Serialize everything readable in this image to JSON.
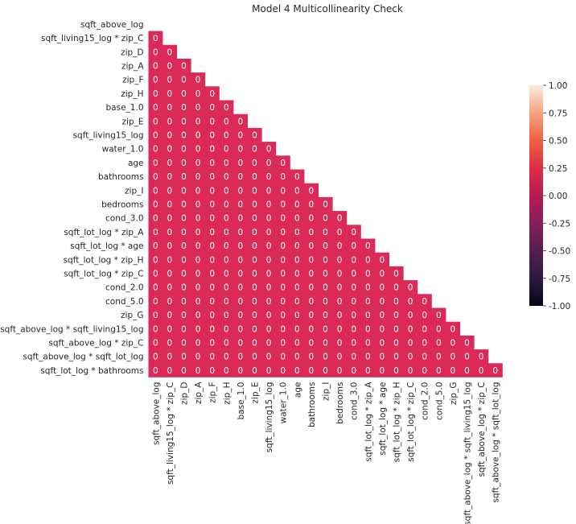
{
  "chart_data": {
    "type": "heatmap",
    "title": "Model 4 Multicollinearity Check",
    "mask": "upper triangle",
    "labels": [
      "sqft_above_log",
      "sqft_living15_log * zip_C",
      "zip_D",
      "zip_A",
      "zip_F",
      "zip_H",
      "base_1.0",
      "zip_E",
      "sqft_living15_log",
      "water_1.0",
      "age",
      "bathrooms",
      "zip_I",
      "bedrooms",
      "cond_3.0",
      "sqft_lot_log * zip_A",
      "sqft_lot_log * age",
      "sqft_lot_log * zip_H",
      "sqft_lot_log * zip_C",
      "cond_2.0",
      "cond_5.0",
      "zip_G",
      "sqft_above_log * sqft_living15_log",
      "sqft_above_log * zip_C",
      "sqft_above_log * sqft_lot_log",
      "sqft_lot_log * bathrooms"
    ],
    "visible_rows": [
      "sqft_living15_log * zip_C",
      "zip_D",
      "zip_A",
      "zip_F",
      "zip_H",
      "base_1.0",
      "zip_E",
      "sqft_living15_log",
      "water_1.0",
      "age",
      "bathrooms",
      "zip_I",
      "bedrooms",
      "cond_3.0",
      "sqft_lot_log * zip_A",
      "sqft_lot_log * age",
      "sqft_lot_log * zip_H",
      "sqft_lot_log * zip_C",
      "cond_2.0",
      "cond_5.0",
      "zip_G",
      "sqft_above_log * sqft_living15_log",
      "sqft_above_log * zip_C",
      "sqft_above_log * sqft_lot_log",
      "sqft_lot_log * bathrooms"
    ],
    "visible_columns": [
      "sqft_above_log",
      "sqft_living15_log * zip_C",
      "zip_D",
      "zip_A",
      "zip_F",
      "zip_H",
      "base_1.0",
      "zip_E",
      "sqft_living15_log",
      "water_1.0",
      "age",
      "bathrooms",
      "zip_I",
      "bedrooms",
      "cond_3.0",
      "sqft_lot_log * zip_A",
      "sqft_lot_log * age",
      "sqft_lot_log * zip_H",
      "sqft_lot_log * zip_C",
      "cond_2.0",
      "cond_5.0",
      "zip_G",
      "sqft_above_log * sqft_living15_log",
      "sqft_above_log * zip_C",
      "sqft_above_log * sqft_lot_log"
    ],
    "cell_value": 0,
    "cell_color": "#db2a58",
    "colorbar": {
      "vmin": -1.0,
      "vmax": 1.0,
      "ticks": [
        "-1.00",
        "-0.75",
        "-0.50",
        "-0.25",
        "0.00",
        "0.25",
        "0.50",
        "0.75",
        "1.00"
      ],
      "colormap": "rocket"
    }
  }
}
